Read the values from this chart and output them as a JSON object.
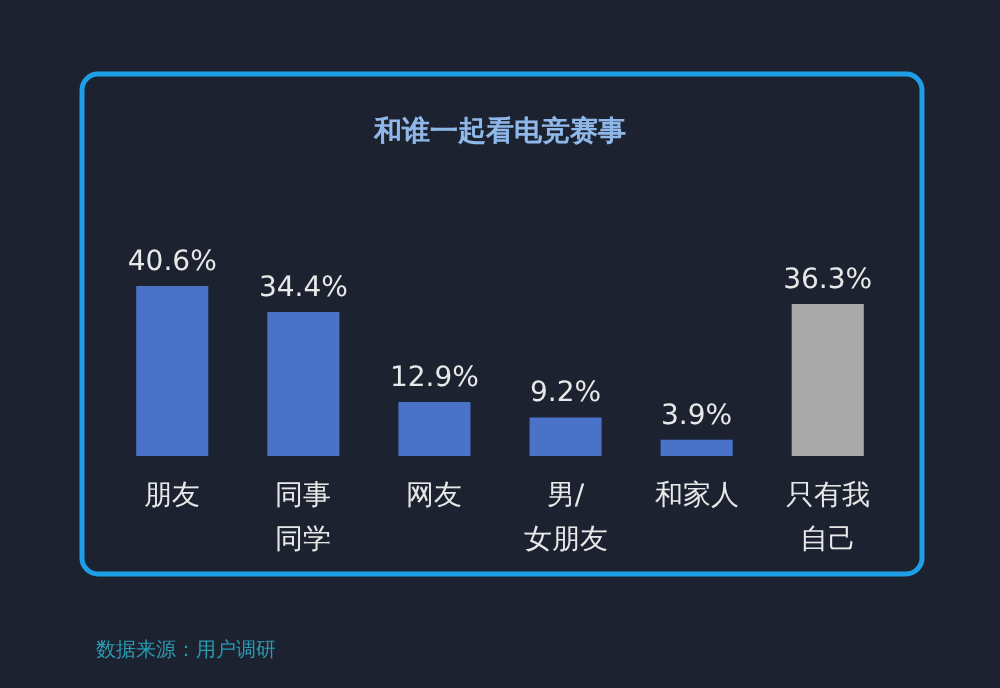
{
  "chart_data": {
    "type": "bar",
    "title": "和谁一起看电竞赛事",
    "categories": [
      "朋友",
      "同事同学",
      "网友",
      "男/\n女朋友",
      "和家人",
      "只有我自己"
    ],
    "values": [
      40.6,
      34.4,
      12.9,
      9.2,
      3.9,
      36.3
    ],
    "colors": [
      "#4a72c8",
      "#4a72c8",
      "#4a72c8",
      "#4a72c8",
      "#4a72c8",
      "#a9a9a9"
    ],
    "value_labels": [
      "40.6%",
      "34.4%",
      "12.9%",
      "9.2%",
      "3.9%",
      "36.3%"
    ],
    "annotations": [
      "数据来源：用户调研"
    ]
  }
}
